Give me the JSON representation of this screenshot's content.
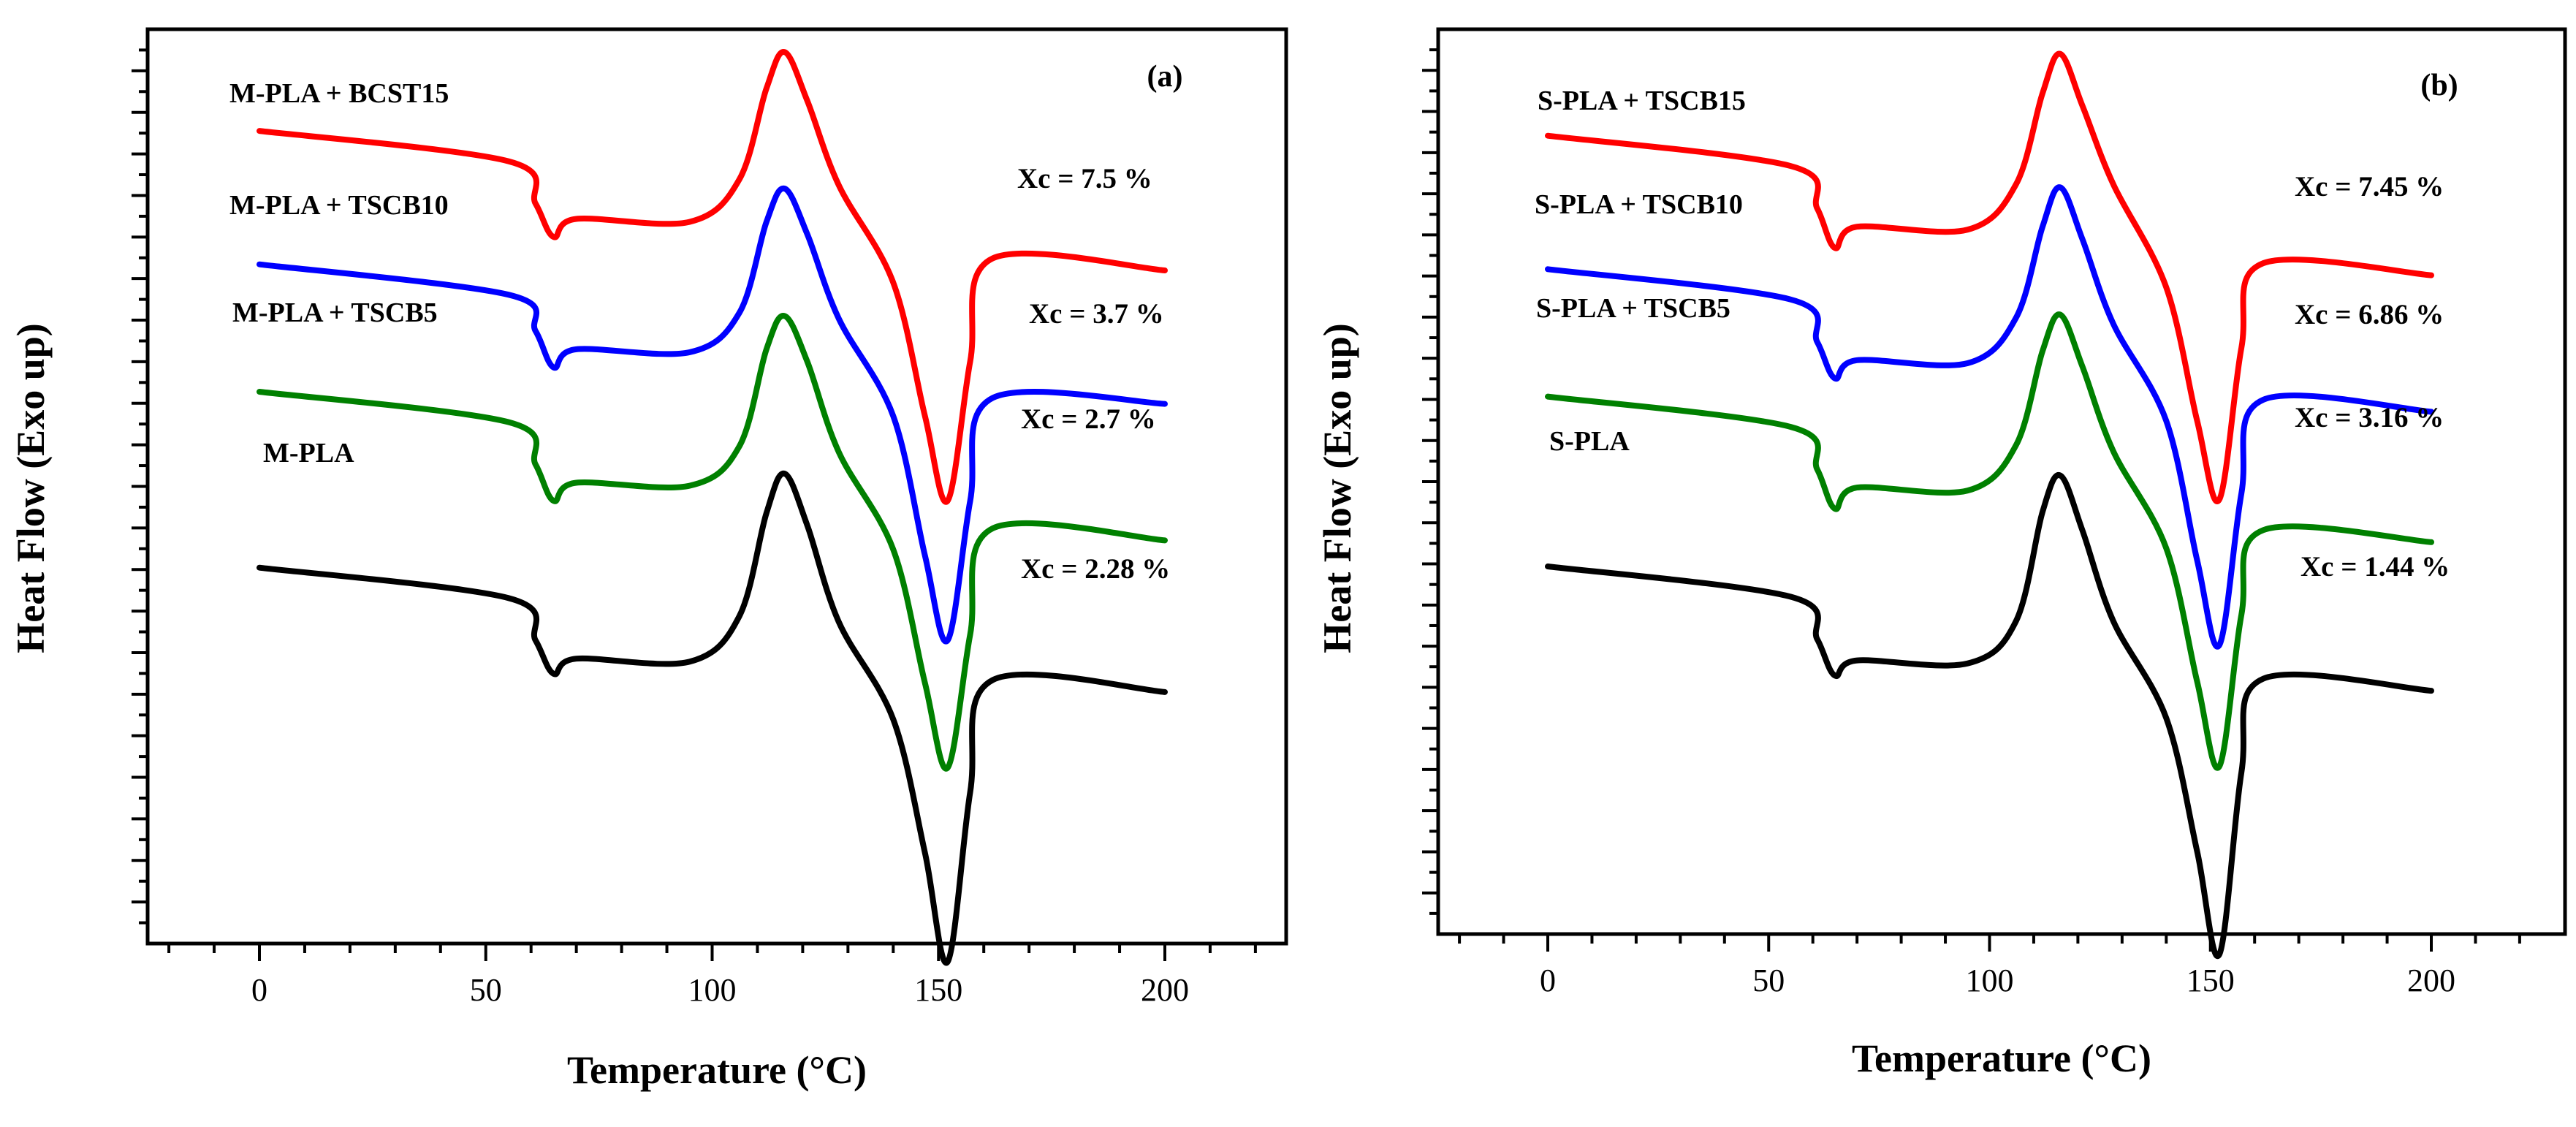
{
  "chart_data": [
    {
      "type": "line",
      "panel_label": "(a)",
      "xlabel": "Temperature (°C)",
      "ylabel": "Heat Flow (Exo up)",
      "xlim": [
        -25,
        225
      ],
      "xticks": [
        0,
        50,
        100,
        150,
        200
      ],
      "y_tick_labels_shown": false,
      "grid": false,
      "legend": "none (curves labelled directly)",
      "series": [
        {
          "name": "M-PLA + BCST15",
          "color": "#ff0000",
          "xc": "Xc = 7.5 %",
          "x": [
            0,
            55,
            61,
            65,
            70,
            95,
            106,
            112,
            116,
            121,
            128,
            140,
            147,
            152,
            157,
            162,
            200
          ],
          "y": [
            12.3,
            11.8,
            11.1,
            10.55,
            10.85,
            10.8,
            11.5,
            13.0,
            13.6,
            12.8,
            11.4,
            9.8,
            7.6,
            6.2,
            8.5,
            10.2,
            10.0
          ]
        },
        {
          "name": "M-PLA + TSCB10",
          "color": "#0000ff",
          "xc": "Xc = 3.7 %",
          "x": [
            0,
            55,
            61,
            65,
            70,
            95,
            106,
            112,
            116,
            121,
            128,
            140,
            147,
            152,
            157,
            162,
            200
          ],
          "y": [
            10.1,
            9.6,
            9.0,
            8.4,
            8.7,
            8.65,
            9.3,
            10.8,
            11.35,
            10.6,
            9.2,
            7.6,
            5.3,
            3.9,
            6.2,
            7.9,
            7.8
          ]
        },
        {
          "name": "M-PLA + TSCB5",
          "color": "#008000",
          "xc": "Xc = 2.7 %",
          "x": [
            0,
            55,
            61,
            65,
            70,
            95,
            106,
            112,
            116,
            121,
            128,
            140,
            147,
            152,
            157,
            162,
            200
          ],
          "y": [
            8.0,
            7.5,
            6.8,
            6.2,
            6.5,
            6.45,
            7.1,
            8.7,
            9.25,
            8.5,
            7.0,
            5.4,
            3.2,
            1.8,
            4.0,
            5.75,
            5.55
          ]
        },
        {
          "name": "M-PLA",
          "color": "#000000",
          "xc": "Xc = 2.28 %",
          "x": [
            0,
            55,
            61,
            65,
            70,
            95,
            106,
            112,
            116,
            121,
            128,
            140,
            147,
            152,
            157,
            162,
            200
          ],
          "y": [
            5.1,
            4.6,
            3.9,
            3.35,
            3.6,
            3.55,
            4.3,
            6.0,
            6.65,
            5.8,
            4.2,
            2.6,
            0.4,
            -1.4,
            1.4,
            3.25,
            3.05
          ]
        }
      ]
    },
    {
      "type": "line",
      "panel_label": "(b)",
      "xlabel": "Temperature (°C)",
      "ylabel": "Heat Flow (Exo up)",
      "xlim": [
        -25,
        225
      ],
      "xticks": [
        0,
        50,
        100,
        150,
        200
      ],
      "y_tick_labels_shown": false,
      "grid": false,
      "legend": "none (curves labelled directly)",
      "series": [
        {
          "name": "S-PLA + TSCB15",
          "color": "#ff0000",
          "xc": "Xc = 7.45 %",
          "x": [
            0,
            55,
            61,
            65,
            70,
            95,
            106,
            112,
            116,
            121,
            128,
            140,
            147,
            152,
            157,
            162,
            200
          ],
          "y": [
            12.1,
            11.6,
            10.9,
            10.25,
            10.6,
            10.55,
            11.3,
            12.8,
            13.45,
            12.6,
            11.3,
            9.6,
            7.4,
            6.1,
            8.6,
            10.0,
            9.8
          ]
        },
        {
          "name": "S-PLA + TSCB10",
          "color": "#0000ff",
          "xc": "Xc = 6.86 %",
          "x": [
            0,
            55,
            61,
            65,
            70,
            95,
            106,
            112,
            116,
            121,
            128,
            140,
            147,
            152,
            157,
            162,
            200
          ],
          "y": [
            9.9,
            9.4,
            8.7,
            8.1,
            8.4,
            8.35,
            9.1,
            10.6,
            11.25,
            10.4,
            9.0,
            7.4,
            5.1,
            3.7,
            6.2,
            7.75,
            7.55
          ]
        },
        {
          "name": "S-PLA + TSCB5",
          "color": "#008000",
          "xc": "Xc = 3.16 %",
          "x": [
            0,
            55,
            61,
            65,
            70,
            95,
            106,
            112,
            116,
            121,
            128,
            140,
            147,
            152,
            157,
            162,
            200
          ],
          "y": [
            7.8,
            7.3,
            6.6,
            5.95,
            6.3,
            6.25,
            7.0,
            8.55,
            9.15,
            8.3,
            6.9,
            5.3,
            3.1,
            1.7,
            4.2,
            5.6,
            5.4
          ]
        },
        {
          "name": "S-PLA",
          "color": "#000000",
          "xc": "Xc = 1.44 %",
          "x": [
            0,
            55,
            61,
            65,
            70,
            95,
            106,
            112,
            116,
            121,
            128,
            140,
            147,
            152,
            157,
            162,
            200
          ],
          "y": [
            5.0,
            4.5,
            3.8,
            3.2,
            3.45,
            3.4,
            4.1,
            5.9,
            6.5,
            5.6,
            4.1,
            2.5,
            0.3,
            -1.4,
            1.6,
            3.15,
            2.95
          ]
        }
      ]
    }
  ]
}
